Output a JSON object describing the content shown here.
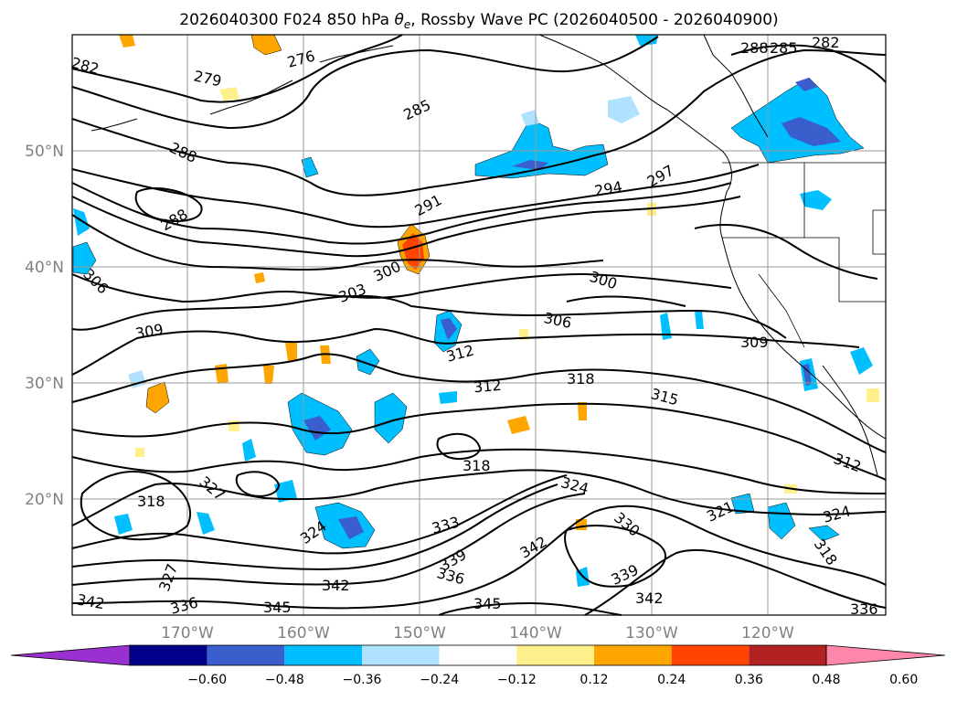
{
  "map": {
    "title": "2026040300 F024 850 hPa θe, Rossby Wave PC (2026040500 - 2026040900)",
    "title_main": "2026040300 F024 850 hPa ",
    "title_var_symbol": "θ",
    "title_var_sub": "e",
    "title_rest": ", Rossby Wave PC (2026040500 - 2026040900)",
    "lat_labels": [
      "50°N",
      "40°N",
      "30°N",
      "20°N"
    ],
    "lon_labels": [
      "170°W",
      "160°W",
      "150°W",
      "140°W",
      "130°W",
      "120°W"
    ],
    "contour_labels": [
      "282",
      "279",
      "276",
      "285",
      "288",
      "288",
      "288",
      "285",
      "282",
      "291",
      "294",
      "297",
      "300",
      "300",
      "303",
      "306",
      "306",
      "309",
      "309",
      "312",
      "312",
      "312",
      "315",
      "318",
      "318",
      "318",
      "318",
      "321",
      "324",
      "324",
      "324",
      "327",
      "327",
      "330",
      "333",
      "336",
      "336",
      "339",
      "339",
      "342",
      "342",
      "342",
      "342",
      "345",
      "345",
      "336"
    ]
  },
  "colorbar": {
    "ticks": [
      "−0.60",
      "−0.48",
      "−0.36",
      "−0.24",
      "−0.12",
      "0.12",
      "0.24",
      "0.36",
      "0.48",
      "0.60"
    ],
    "colors": [
      "#9b30d0",
      "#00008b",
      "#3a5fcd",
      "#00bfff",
      "#b0e2ff",
      "#ffffff",
      "#fff08c",
      "#ffa500",
      "#ff4500",
      "#b22222",
      "#ff88aa"
    ]
  },
  "colors": {
    "neg_light": "#b0e2ff",
    "neg_mid": "#00bfff",
    "neg_dark": "#3a5fcd",
    "pos_light": "#fff08c",
    "pos_mid": "#ffa500",
    "pos_dark": "#ff4500"
  }
}
